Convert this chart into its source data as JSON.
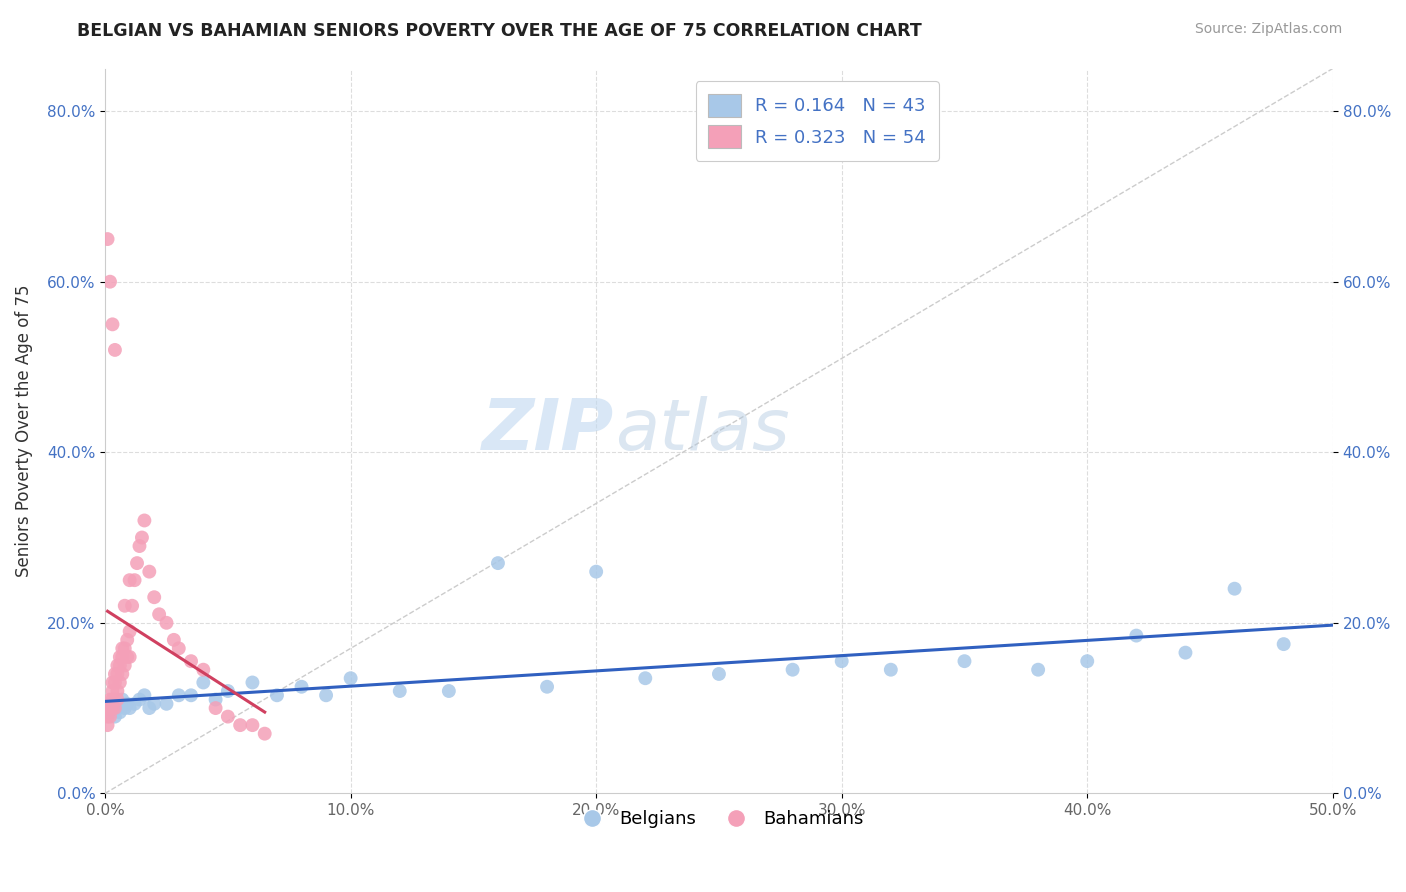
{
  "title": "BELGIAN VS BAHAMIAN SENIORS POVERTY OVER THE AGE OF 75 CORRELATION CHART",
  "source": "Source: ZipAtlas.com",
  "ylabel": "Seniors Poverty Over the Age of 75",
  "xlabel": "",
  "xlim": [
    0,
    0.5
  ],
  "ylim": [
    0,
    0.85
  ],
  "xticks": [
    0.0,
    0.1,
    0.2,
    0.3,
    0.4,
    0.5
  ],
  "yticks": [
    0.0,
    0.2,
    0.4,
    0.6,
    0.8
  ],
  "xtick_labels": [
    "0.0%",
    "10.0%",
    "20.0%",
    "30.0%",
    "40.0%",
    "50.0%"
  ],
  "ytick_labels": [
    "0.0%",
    "20.0%",
    "40.0%",
    "60.0%",
    "80.0%"
  ],
  "belgian_color": "#a8c8e8",
  "bahamian_color": "#f4a0b8",
  "belgian_line_color": "#3060c0",
  "bahamian_line_color": "#d04060",
  "legend_belgian_label": "Belgians",
  "legend_bahamian_label": "Bahamians",
  "R_belgian": 0.164,
  "N_belgian": 43,
  "R_bahamian": 0.323,
  "N_bahamian": 54,
  "watermark_zip": "ZIP",
  "watermark_atlas": "atlas",
  "background_color": "#ffffff",
  "grid_color": "#dddddd",
  "belgian_scatter_x": [
    0.001,
    0.002,
    0.003,
    0.004,
    0.005,
    0.006,
    0.007,
    0.008,
    0.009,
    0.01,
    0.012,
    0.014,
    0.016,
    0.018,
    0.02,
    0.025,
    0.03,
    0.035,
    0.04,
    0.045,
    0.05,
    0.06,
    0.07,
    0.08,
    0.09,
    0.1,
    0.12,
    0.14,
    0.16,
    0.18,
    0.2,
    0.22,
    0.25,
    0.28,
    0.3,
    0.32,
    0.35,
    0.38,
    0.4,
    0.42,
    0.44,
    0.46,
    0.48
  ],
  "belgian_scatter_y": [
    0.1,
    0.095,
    0.105,
    0.09,
    0.1,
    0.095,
    0.11,
    0.1,
    0.105,
    0.1,
    0.105,
    0.11,
    0.115,
    0.1,
    0.105,
    0.105,
    0.115,
    0.115,
    0.13,
    0.11,
    0.12,
    0.13,
    0.115,
    0.125,
    0.115,
    0.135,
    0.12,
    0.12,
    0.27,
    0.125,
    0.26,
    0.135,
    0.14,
    0.145,
    0.155,
    0.145,
    0.155,
    0.145,
    0.155,
    0.185,
    0.165,
    0.24,
    0.175
  ],
  "bahamian_scatter_x": [
    0.001,
    0.001,
    0.001,
    0.002,
    0.002,
    0.002,
    0.003,
    0.003,
    0.003,
    0.003,
    0.004,
    0.004,
    0.004,
    0.005,
    0.005,
    0.005,
    0.005,
    0.006,
    0.006,
    0.006,
    0.007,
    0.007,
    0.007,
    0.008,
    0.008,
    0.008,
    0.009,
    0.009,
    0.01,
    0.01,
    0.01,
    0.011,
    0.012,
    0.013,
    0.014,
    0.015,
    0.016,
    0.018,
    0.02,
    0.022,
    0.025,
    0.028,
    0.03,
    0.035,
    0.04,
    0.045,
    0.05,
    0.055,
    0.06,
    0.065,
    0.001,
    0.002,
    0.003,
    0.004
  ],
  "bahamian_scatter_y": [
    0.08,
    0.09,
    0.1,
    0.09,
    0.1,
    0.11,
    0.1,
    0.11,
    0.12,
    0.13,
    0.1,
    0.13,
    0.14,
    0.11,
    0.12,
    0.14,
    0.15,
    0.13,
    0.15,
    0.16,
    0.14,
    0.16,
    0.17,
    0.15,
    0.17,
    0.22,
    0.16,
    0.18,
    0.16,
    0.19,
    0.25,
    0.22,
    0.25,
    0.27,
    0.29,
    0.3,
    0.32,
    0.26,
    0.23,
    0.21,
    0.2,
    0.18,
    0.17,
    0.155,
    0.145,
    0.1,
    0.09,
    0.08,
    0.08,
    0.07,
    0.65,
    0.6,
    0.55,
    0.52
  ]
}
